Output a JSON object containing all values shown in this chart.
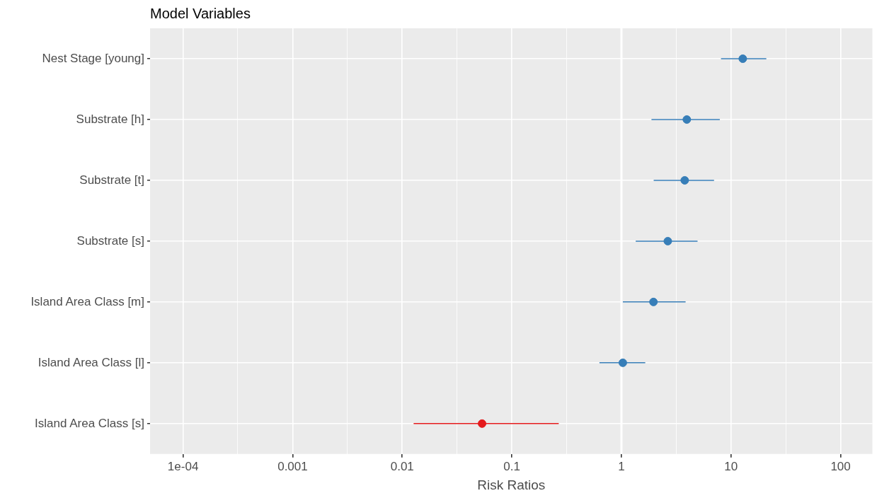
{
  "chart_data": {
    "type": "scatter",
    "orientation": "horizontal",
    "title": "Model Variables",
    "xlabel": "Risk Ratios",
    "categories": [
      "Nest Stage [young]",
      "Substrate [h]",
      "Substrate [t]",
      "Substrate [s]",
      "Island Area Class [m]",
      "Island Area Class [l]",
      "Island Area Class [s]"
    ],
    "values": [
      12.8,
      3.95,
      3.78,
      2.65,
      1.96,
      1.03,
      0.0535
    ],
    "errors": [
      [
        8.1,
        21
      ],
      [
        1.88,
        7.9
      ],
      [
        1.97,
        7.0
      ],
      [
        1.35,
        4.95
      ],
      [
        1.03,
        3.85
      ],
      [
        0.63,
        1.65
      ],
      [
        0.0127,
        0.268
      ]
    ],
    "colors": [
      "#377eb8",
      "#377eb8",
      "#377eb8",
      "#377eb8",
      "#377eb8",
      "#377eb8",
      "#e41a1c"
    ],
    "log": "x",
    "xlim": [
      5e-05,
      195
    ],
    "xticks": [
      {
        "value": 0.0001,
        "label": "1e-04"
      },
      {
        "value": 0.000316,
        "label": null
      },
      0.001,
      {
        "value": 0.00316,
        "label": null
      },
      0.01,
      {
        "value": 0.0316,
        "label": null
      },
      0.1,
      {
        "value": 0.316,
        "label": null
      },
      1,
      {
        "value": 3.16,
        "label": null
      },
      10,
      {
        "value": 31.6,
        "label": null
      },
      100
    ],
    "ref_lines": [
      {
        "axis": "x",
        "value": 1,
        "color": "#ffffff"
      }
    ],
    "grid": true,
    "marker": "circle",
    "legend": false
  }
}
